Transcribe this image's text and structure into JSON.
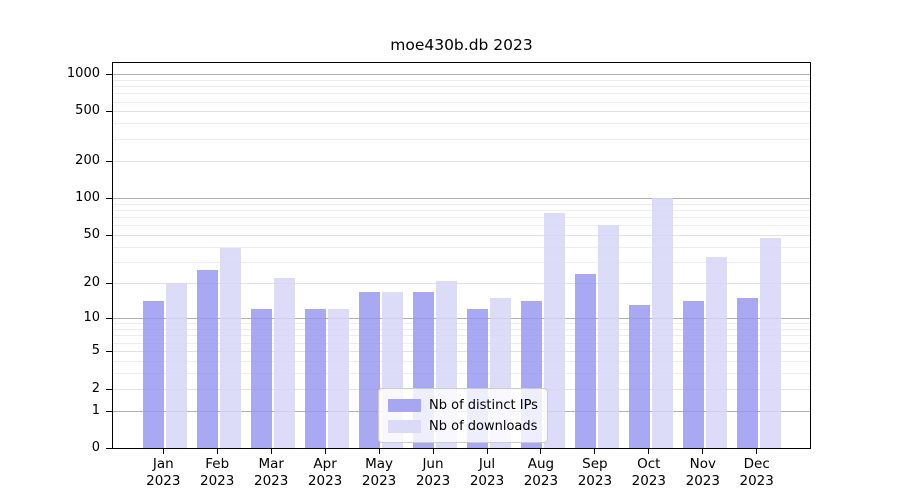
{
  "title": "moe430b.db 2023",
  "chart_data": {
    "type": "bar",
    "title": "moe430b.db 2023",
    "categories": [
      "Jan 2023",
      "Feb 2023",
      "Mar 2023",
      "Apr 2023",
      "May 2023",
      "Jun 2023",
      "Jul 2023",
      "Aug 2023",
      "Sep 2023",
      "Oct 2023",
      "Nov 2023",
      "Dec 2023"
    ],
    "series": [
      {
        "name": "Nb of distinct IPs",
        "color": "rgba(150,150,240,0.82)",
        "swatch": "#a6a6f2",
        "values": [
          14,
          26,
          12,
          12,
          17,
          17,
          12,
          14,
          24,
          13,
          14,
          15
        ]
      },
      {
        "name": "Nb of downloads",
        "color": "rgba(214,214,248,0.85)",
        "swatch": "#dbdbf9",
        "values": [
          20,
          39,
          22,
          12,
          17,
          21,
          15,
          76,
          60,
          100,
          33,
          47
        ]
      }
    ],
    "xlabel": "",
    "ylabel": "",
    "yscale": "log(1+y)",
    "ylim": [
      0,
      1200
    ],
    "y_ticks": [
      1000,
      500,
      200,
      100,
      50,
      20,
      10,
      5,
      2,
      1,
      0
    ],
    "major_gridlines": [
      1,
      10,
      100,
      1000
    ],
    "light_gridlines": [
      2,
      5,
      20,
      50,
      200,
      500
    ],
    "minor_gridlines": [
      3,
      4,
      6,
      7,
      8,
      9,
      30,
      40,
      60,
      70,
      80,
      90,
      300,
      400,
      600,
      700,
      800,
      900
    ],
    "grid": "on",
    "legend_position": "lower center"
  }
}
